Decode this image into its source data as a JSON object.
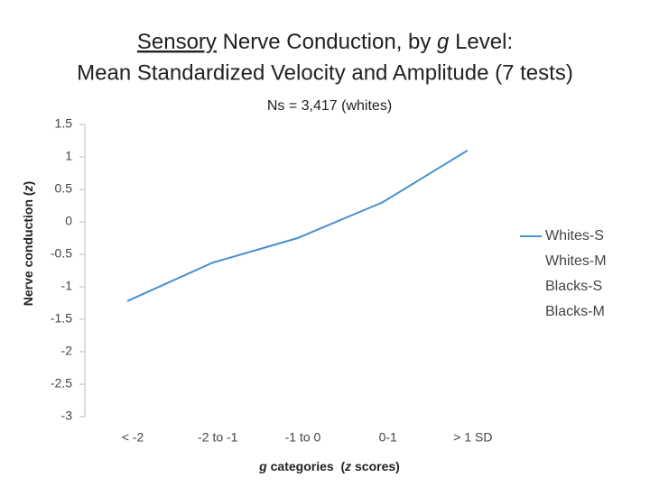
{
  "chart_data": {
    "type": "line",
    "title": [
      [
        "Sensory",
        " Nerve Conduction, by ",
        "g",
        " Level:"
      ],
      [
        "Mean Standardized Velocity and Amplitude (7 tests)"
      ]
    ],
    "subtitle": "Ns = 3,417 (whites)",
    "y_label": [
      "Nerve conduction (",
      "z",
      ")"
    ],
    "x_label": [
      "g",
      " categories  (",
      "z",
      " scores)"
    ],
    "categories": [
      "< -2",
      "-2 to -1",
      "-1 to 0",
      "0-1",
      ">  1 SD"
    ],
    "series": [
      {
        "name": "Whites-S",
        "color": "#4a8fcf",
        "values": [
          -1.22,
          -0.63,
          -0.25,
          0.3,
          1.1
        ]
      },
      {
        "name": "Whites-M",
        "values": [
          null,
          null,
          null,
          null,
          null
        ]
      },
      {
        "name": "Blacks-S",
        "values": [
          null,
          null,
          null,
          null,
          null
        ]
      },
      {
        "name": "Blacks-M",
        "values": [
          null,
          null,
          null,
          null,
          null
        ]
      }
    ],
    "ylim": [
      -3,
      1.5
    ],
    "yticks": [
      1.5,
      1,
      0.5,
      0,
      -0.5,
      -1,
      -1.5,
      -2,
      -2.5,
      -3
    ],
    "legend": "right"
  }
}
